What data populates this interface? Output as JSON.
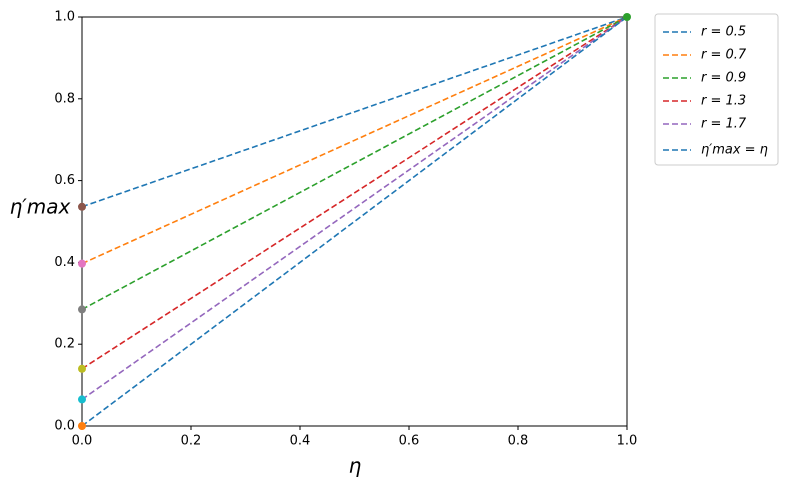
{
  "chart_data": {
    "type": "line",
    "xlabel": "η",
    "ylabel": "η′max",
    "x": [
      0,
      1
    ],
    "series": [
      {
        "name": "r = 0.5",
        "color": "#1f77b4",
        "values": [
          0.536,
          1
        ]
      },
      {
        "name": "r = 0.7",
        "color": "#ff7f0e",
        "values": [
          0.397,
          1
        ]
      },
      {
        "name": "r = 0.9",
        "color": "#2ca02c",
        "values": [
          0.285,
          1
        ]
      },
      {
        "name": "r = 1.3",
        "color": "#d62728",
        "values": [
          0.14,
          1
        ]
      },
      {
        "name": "r = 1.7",
        "color": "#9467bd",
        "values": [
          0.065,
          1
        ]
      },
      {
        "name": "η′max = η",
        "color": "#1f77b4",
        "values": [
          0,
          1
        ]
      }
    ],
    "markers": {
      "x": [
        0,
        0,
        0,
        0,
        0,
        0,
        1
      ],
      "y": [
        0.536,
        0.397,
        0.285,
        0.14,
        0.065,
        0,
        1
      ],
      "colors": [
        "#8c564b",
        "#e377c2",
        "#7f7f7f",
        "#bcbd22",
        "#17becf",
        "#ff7f0e",
        "#2ca02c"
      ]
    },
    "xlim": [
      0,
      1
    ],
    "ylim": [
      0,
      1
    ],
    "xticks": [
      {
        "value": 0,
        "label": "0.0"
      },
      0.2,
      0.4,
      0.6,
      0.8,
      {
        "value": 1,
        "label": "1.0"
      }
    ],
    "yticks": [
      {
        "value": 0,
        "label": "0.0"
      },
      0.2,
      0.4,
      0.6,
      0.8,
      {
        "value": 1,
        "label": "1.0"
      }
    ],
    "grid": false,
    "legend": "outside upper right"
  }
}
